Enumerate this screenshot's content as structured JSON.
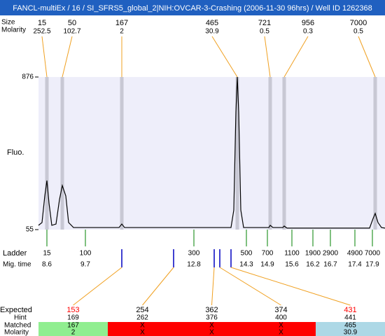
{
  "title": "FANCL-multiEx / 16 / SI_SFRS5_global_2|NIH:OVCAR-3-Crashing (2006-11-30 96hrs) / Well ID 1262368",
  "peak_table": {
    "size_label": "Size",
    "molarity_label": "Molarity",
    "peaks": [
      {
        "size": 15,
        "molarity": 252.5,
        "time": 8.6
      },
      {
        "size": 50,
        "molarity": 102.7,
        "time": 9.04
      },
      {
        "size": 167,
        "molarity": 2,
        "time": 10.74
      },
      {
        "size": 465,
        "molarity": 30.9,
        "time": 14.04
      },
      {
        "size": 721,
        "molarity": 0.5,
        "time": 14.98
      },
      {
        "size": 956,
        "molarity": 0.3,
        "time": 15.38
      },
      {
        "size": 7000,
        "molarity": 0.5,
        "time": 17.98
      }
    ]
  },
  "chart_data": {
    "type": "line",
    "y_label": "Fluo.",
    "color": "#000000",
    "xlim": [
      8.36,
      18.26
    ],
    "ylim": [
      55,
      876
    ],
    "yticks": [
      55,
      876
    ],
    "x": [
      8.36,
      8.46,
      8.54,
      8.6,
      8.66,
      8.74,
      8.86,
      8.96,
      9.04,
      9.14,
      9.22,
      9.36,
      10.66,
      10.74,
      10.82,
      13.86,
      13.94,
      14.0,
      14.04,
      14.08,
      14.14,
      14.22,
      14.94,
      14.98,
      15.06,
      15.34,
      15.38,
      15.46,
      17.82,
      17.92,
      17.98,
      18.06,
      18.16,
      18.26
    ],
    "values": [
      78,
      93,
      236,
      319,
      198,
      78,
      85,
      217,
      292,
      236,
      93,
      66,
      66,
      85,
      66,
      66,
      160,
      688,
      876,
      688,
      160,
      66,
      66,
      78,
      66,
      66,
      74,
      63,
      63,
      115,
      142,
      93,
      66,
      63
    ]
  },
  "ladder": {
    "label": "Ladder",
    "time_label": "Mig. time",
    "sizes": [
      15,
      100,
      300,
      500,
      700,
      1100,
      1900,
      2900,
      4900,
      7000
    ],
    "times": [
      8.6,
      9.7,
      12.8,
      14.3,
      14.9,
      15.6,
      16.2,
      16.7,
      17.4,
      17.9
    ]
  },
  "expected": {
    "label": "Expected",
    "hint_label": "Hint",
    "matched_label": "Matched",
    "molarity_label": "Molarity",
    "items": [
      {
        "size": 153,
        "color": "#ff0000",
        "time": 10.74,
        "hint": 169,
        "matched": 167,
        "molarity": 2,
        "fill": "#90ee90"
      },
      {
        "size": 254,
        "color": "#000000",
        "time": 12.22,
        "hint": 262,
        "matched": "X",
        "molarity": "X",
        "fill": "#ff0000"
      },
      {
        "size": 362,
        "color": "#000000",
        "time": 13.38,
        "hint": 376,
        "matched": "X",
        "molarity": "X",
        "fill": "#ff0000"
      },
      {
        "size": 374,
        "color": "#000000",
        "time": 13.54,
        "hint": 400,
        "matched": "X",
        "molarity": "X",
        "fill": "#ff0000"
      },
      {
        "size": 431,
        "color": "#ff0000",
        "time": 13.86,
        "hint": 441,
        "matched": 465,
        "molarity": 30.9,
        "fill": "#add8e6"
      }
    ]
  }
}
